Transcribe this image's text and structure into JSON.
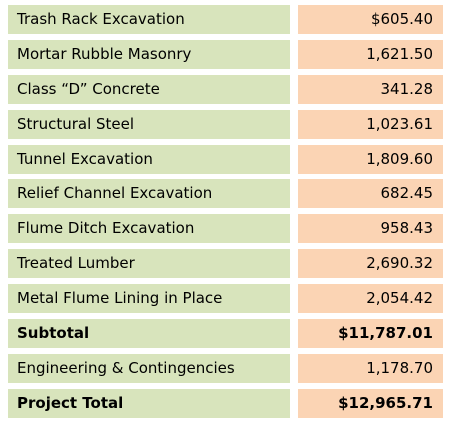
{
  "colors": {
    "label_bg": "#d8e4bc",
    "amount_bg": "#fbd4b4"
  },
  "rows": [
    {
      "label": "Trash Rack Excavation",
      "amount": "$605.40",
      "bold": false
    },
    {
      "label": "Mortar Rubble Masonry",
      "amount": "1,621.50",
      "bold": false
    },
    {
      "label": "Class “D” Concrete",
      "amount": "341.28",
      "bold": false
    },
    {
      "label": "Structural Steel",
      "amount": "1,023.61",
      "bold": false
    },
    {
      "label": "Tunnel Excavation",
      "amount": "1,809.60",
      "bold": false
    },
    {
      "label": "Relief Channel Excavation",
      "amount": "682.45",
      "bold": false
    },
    {
      "label": "Flume Ditch Excavation",
      "amount": "958.43",
      "bold": false
    },
    {
      "label": "Treated Lumber",
      "amount": "2,690.32",
      "bold": false
    },
    {
      "label": "Metal Flume Lining in Place",
      "amount": "2,054.42",
      "bold": false
    },
    {
      "label": "Subtotal",
      "amount": "$11,787.01",
      "bold": true
    },
    {
      "label": "Engineering & Contingencies",
      "amount": "1,178.70",
      "bold": false
    },
    {
      "label": "Project Total",
      "amount": "$12,965.71",
      "bold": true
    }
  ]
}
